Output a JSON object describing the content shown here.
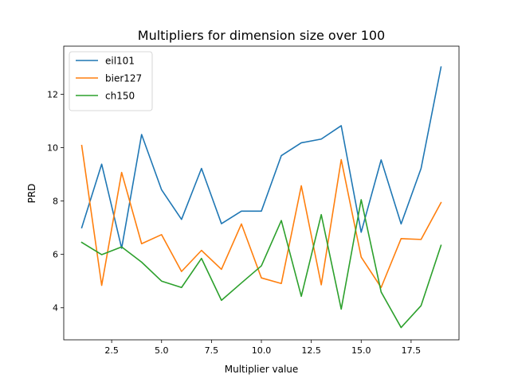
{
  "chart_data": {
    "type": "line",
    "title": "Multipliers for dimension size over 100",
    "xlabel": "Multiplier value",
    "ylabel": "PRD",
    "xlim": [
      0.1,
      19.9
    ],
    "ylim": [
      2.8,
      13.8
    ],
    "xticks": [
      2.5,
      5.0,
      7.5,
      10.0,
      12.5,
      15.0,
      17.5
    ],
    "xtick_labels": [
      "2.5",
      "5.0",
      "7.5",
      "10.0",
      "12.5",
      "15.0",
      "17.5"
    ],
    "yticks": [
      4,
      6,
      8,
      10,
      12
    ],
    "ytick_labels": [
      "4",
      "6",
      "8",
      "10",
      "12"
    ],
    "grid": false,
    "legend_position": "top-left",
    "x": [
      1,
      2,
      3,
      4,
      5,
      6,
      7,
      8,
      9,
      10,
      11,
      12,
      13,
      14,
      15,
      16,
      17,
      18,
      19
    ],
    "series": [
      {
        "name": "eil101",
        "color": "#1f77b4",
        "values": [
          7.0,
          9.38,
          6.23,
          10.49,
          8.42,
          7.31,
          9.22,
          7.15,
          7.62,
          7.62,
          9.7,
          10.18,
          10.32,
          10.82,
          6.83,
          9.54,
          7.14,
          9.22,
          13.02
        ]
      },
      {
        "name": "bier127",
        "color": "#ff7f0e",
        "values": [
          10.08,
          4.84,
          9.07,
          6.4,
          6.74,
          5.36,
          6.15,
          5.44,
          7.14,
          5.12,
          4.91,
          8.57,
          4.86,
          9.55,
          5.9,
          4.76,
          6.59,
          6.56,
          7.94
        ]
      },
      {
        "name": "ch150",
        "color": "#2ca02c",
        "values": [
          6.45,
          5.99,
          6.28,
          5.71,
          5.0,
          4.76,
          5.85,
          4.28,
          4.93,
          5.57,
          7.27,
          4.43,
          7.49,
          3.95,
          8.05,
          4.59,
          3.26,
          4.08,
          6.34
        ]
      }
    ]
  }
}
